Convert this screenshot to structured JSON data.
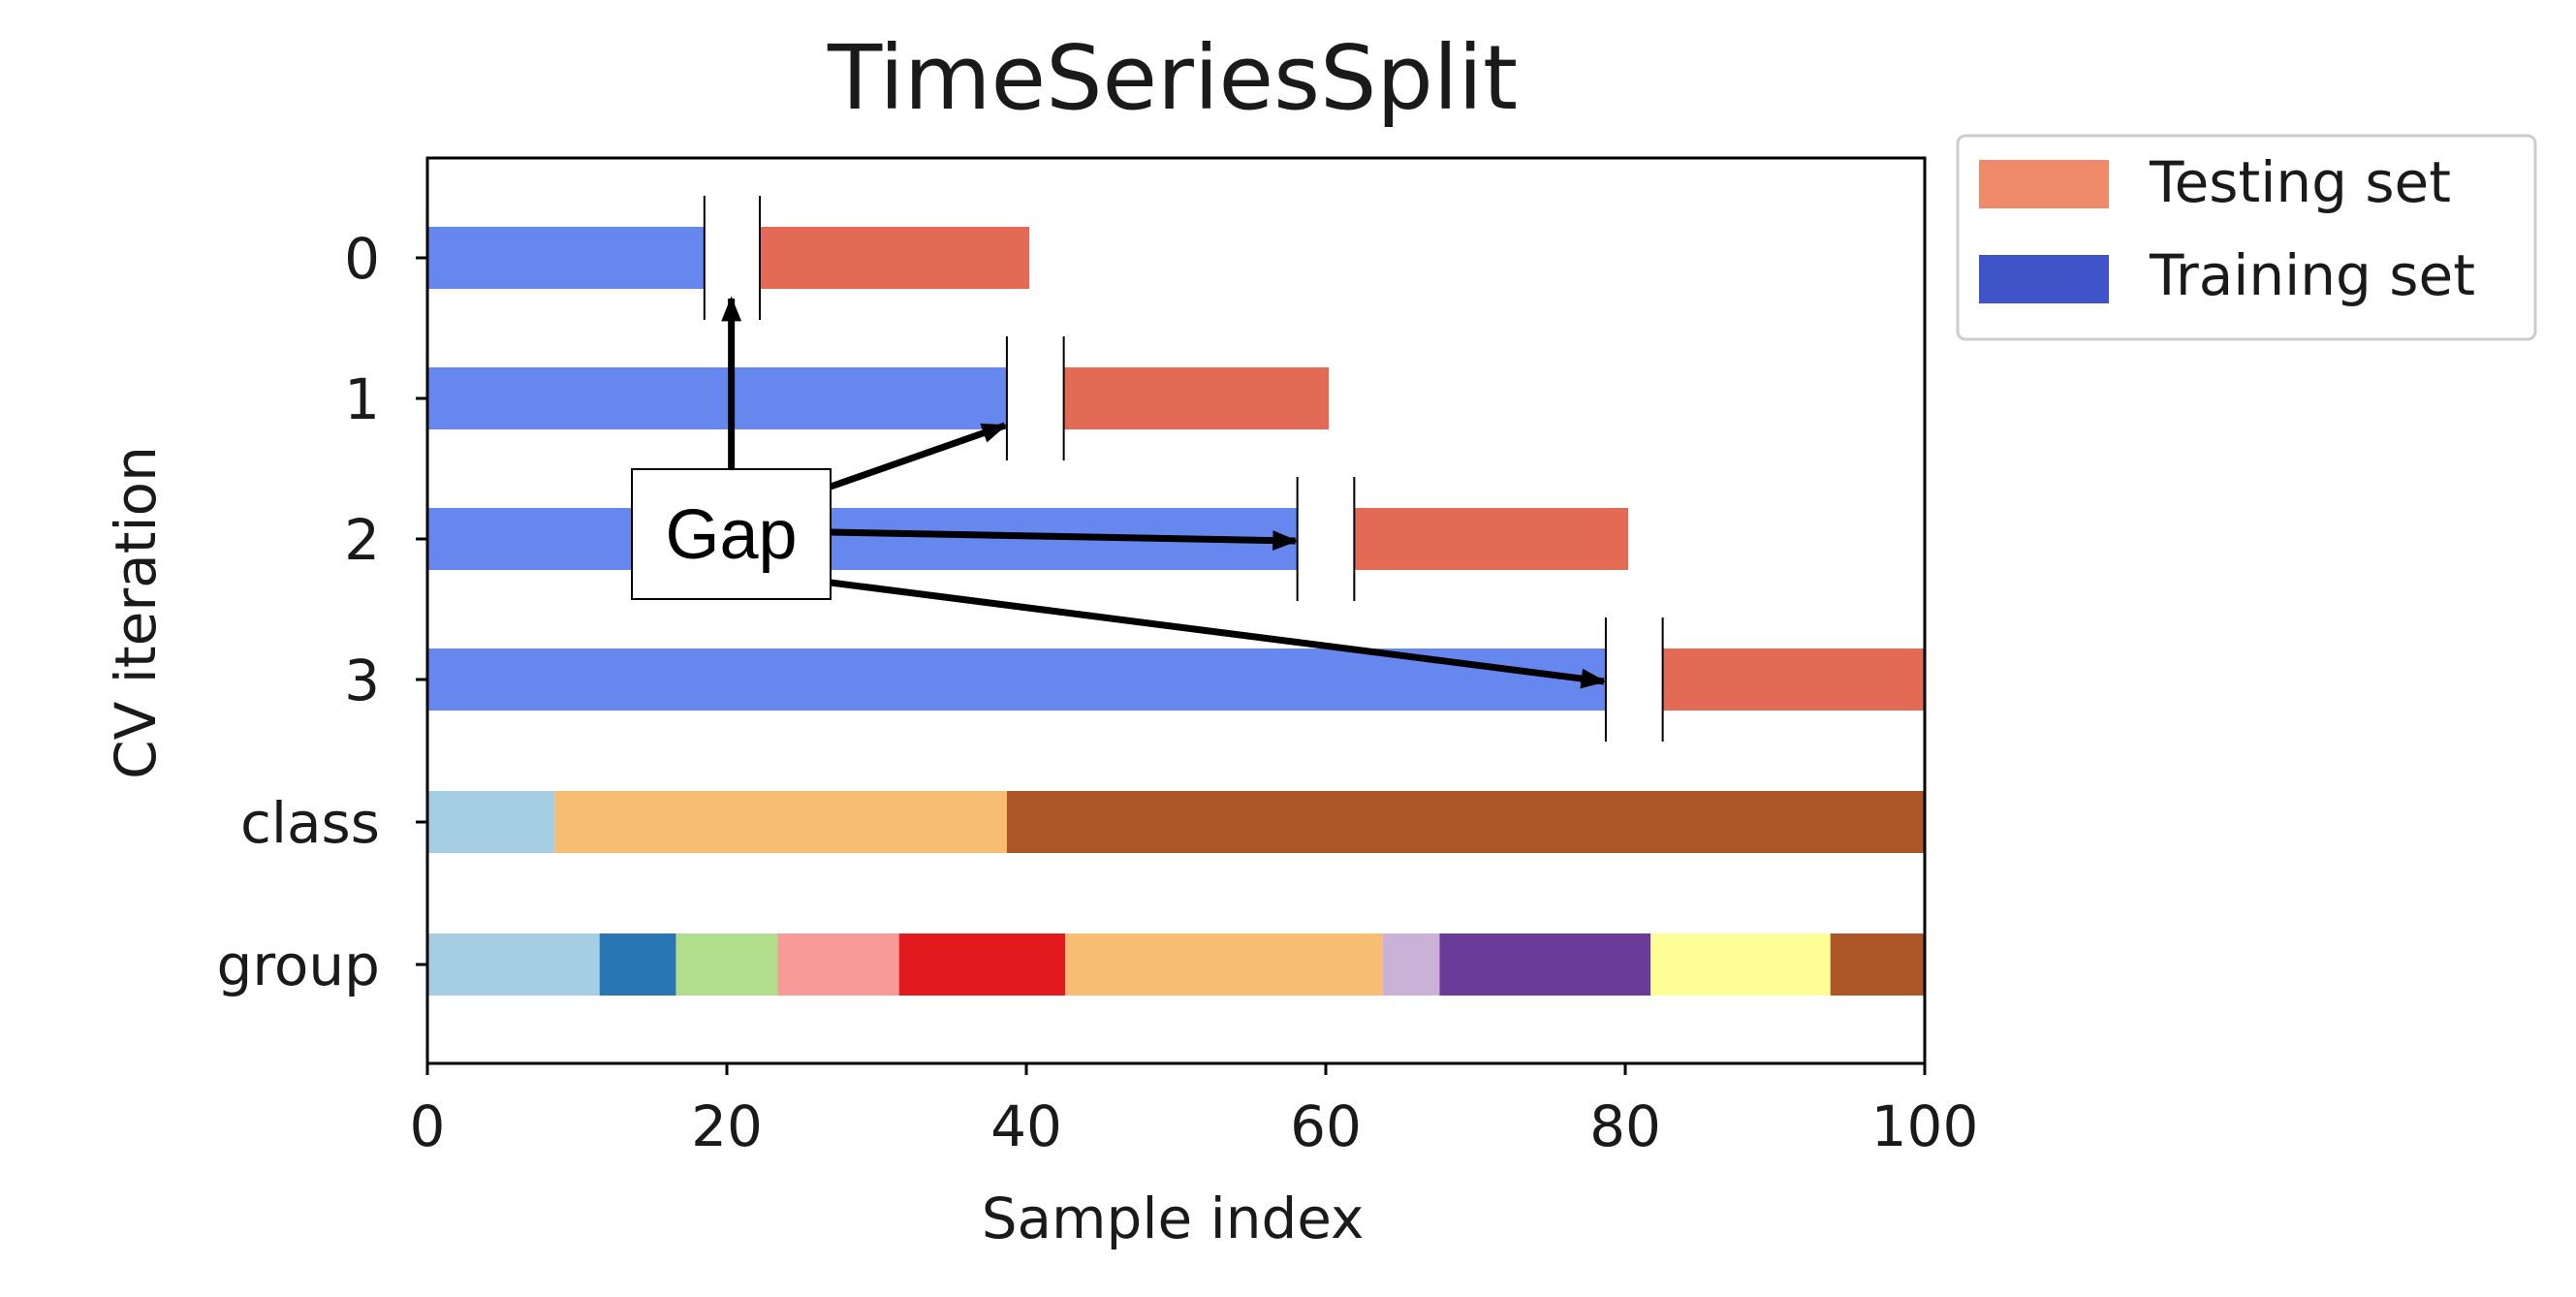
{
  "chart_data": {
    "type": "bar",
    "title": "TimeSeriesSplit",
    "xlabel": "Sample index",
    "ylabel": "CV iteration",
    "xlim": [
      0,
      100
    ],
    "xticks": [
      "0",
      "20",
      "40",
      "60",
      "80",
      "100"
    ],
    "yticks": [
      "0",
      "1",
      "2",
      "3",
      "class",
      "group"
    ],
    "grid": false,
    "legend": {
      "placement": "outside-top-right",
      "entries": [
        {
          "label": "Testing set",
          "color": "#ef8a6a"
        },
        {
          "label": "Training set",
          "color": "#3f54c8"
        }
      ]
    },
    "splits": [
      {
        "iteration": "0",
        "train": [
          0,
          18.5
        ],
        "gap": [
          18.5,
          22.2
        ],
        "test": [
          22.2,
          40.2
        ]
      },
      {
        "iteration": "1",
        "train": [
          0,
          38.7
        ],
        "gap": [
          38.7,
          42.5
        ],
        "test": [
          42.5,
          60.2
        ]
      },
      {
        "iteration": "2",
        "train": [
          0,
          58.1
        ],
        "gap": [
          58.1,
          61.9
        ],
        "test": [
          61.9,
          80.2
        ]
      },
      {
        "iteration": "3",
        "train": [
          0,
          78.7
        ],
        "gap": [
          78.7,
          82.5
        ],
        "test": [
          82.5,
          100
        ]
      }
    ],
    "bar_colors": {
      "train": "#6688ee",
      "test": "#e36a54"
    },
    "class_segments": [
      {
        "start": 0,
        "end": 8.5,
        "color": "#a6cee3"
      },
      {
        "start": 8.5,
        "end": 38.7,
        "color": "#f7be73"
      },
      {
        "start": 38.7,
        "end": 100,
        "color": "#ad5729"
      }
    ],
    "group_segments": [
      {
        "start": 0,
        "end": 11.5,
        "color": "#a6cee3"
      },
      {
        "start": 11.5,
        "end": 16.6,
        "color": "#2876b3"
      },
      {
        "start": 16.6,
        "end": 23.4,
        "color": "#b0de8a"
      },
      {
        "start": 23.4,
        "end": 31.5,
        "color": "#f89a98"
      },
      {
        "start": 31.5,
        "end": 42.6,
        "color": "#e31a1d"
      },
      {
        "start": 42.6,
        "end": 63.8,
        "color": "#f7be73"
      },
      {
        "start": 63.8,
        "end": 67.6,
        "color": "#cab1d8"
      },
      {
        "start": 67.6,
        "end": 81.7,
        "color": "#6a3b99"
      },
      {
        "start": 81.7,
        "end": 93.7,
        "color": "#fefe96"
      },
      {
        "start": 93.7,
        "end": 100,
        "color": "#ad5729"
      }
    ],
    "annotation": {
      "text": "Gap",
      "targets": [
        {
          "row": "0",
          "x": 20.3
        },
        {
          "row": "1",
          "x": 38.7
        },
        {
          "row": "2",
          "x": 58.1
        },
        {
          "row": "3",
          "x": 78.7
        }
      ]
    }
  }
}
